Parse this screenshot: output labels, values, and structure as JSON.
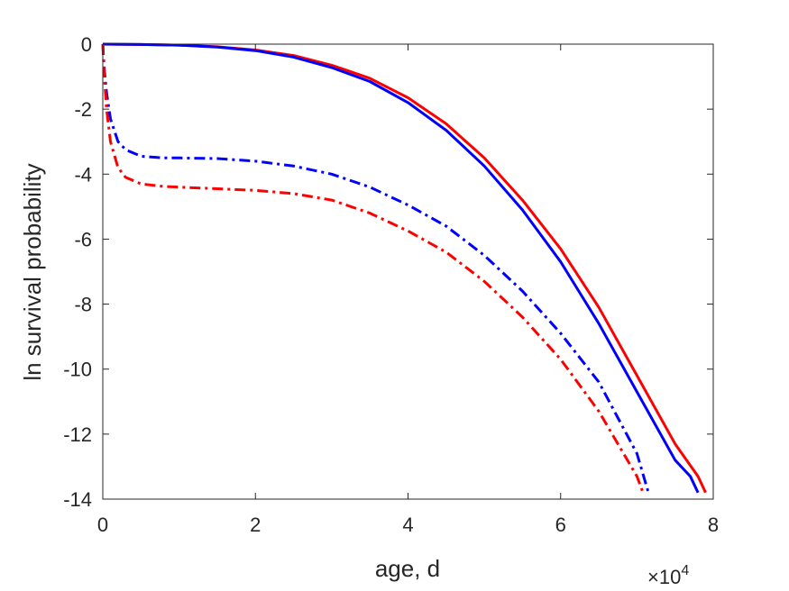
{
  "chart_data": {
    "type": "line",
    "xlabel": "age, d",
    "ylabel": "ln survival probability",
    "x_multiplier_label": "×10",
    "x_multiplier_exponent": "4",
    "xlim": [
      0,
      80000
    ],
    "ylim": [
      -14,
      0
    ],
    "x_ticks": [
      0,
      20000,
      40000,
      60000,
      80000
    ],
    "x_tick_labels": [
      "0",
      "2",
      "4",
      "6",
      "8"
    ],
    "y_ticks": [
      0,
      -2,
      -4,
      -6,
      -8,
      -10,
      -12,
      -14
    ],
    "y_tick_labels": [
      "0",
      "-2",
      "-4",
      "-6",
      "-8",
      "-10",
      "-12",
      "-14"
    ],
    "grid": false,
    "series": [
      {
        "color": "#ff0000",
        "style": "solid",
        "x": [
          0,
          5000,
          10000,
          15000,
          20000,
          25000,
          30000,
          35000,
          40000,
          45000,
          50000,
          55000,
          60000,
          65000,
          70000,
          75000,
          78000,
          79000
        ],
        "y": [
          0,
          -0.01,
          -0.03,
          -0.08,
          -0.18,
          -0.35,
          -0.65,
          -1.05,
          -1.65,
          -2.45,
          -3.5,
          -4.8,
          -6.3,
          -8.1,
          -10.2,
          -12.3,
          -13.3,
          -13.8
        ]
      },
      {
        "color": "#0000ff",
        "style": "solid",
        "x": [
          0,
          5000,
          10000,
          15000,
          20000,
          25000,
          30000,
          35000,
          40000,
          45000,
          50000,
          55000,
          60000,
          65000,
          70000,
          75000,
          77000,
          78000
        ],
        "y": [
          0,
          -0.01,
          -0.03,
          -0.09,
          -0.2,
          -0.4,
          -0.72,
          -1.15,
          -1.8,
          -2.65,
          -3.75,
          -5.1,
          -6.7,
          -8.6,
          -10.7,
          -12.8,
          -13.3,
          -13.8
        ]
      },
      {
        "color": "#0000ff",
        "style": "dashdot",
        "x": [
          0,
          200,
          500,
          1000,
          2000,
          3000,
          5000,
          8000,
          10000,
          15000,
          20000,
          25000,
          30000,
          35000,
          40000,
          45000,
          50000,
          55000,
          60000,
          65000,
          70000,
          71500
        ],
        "y": [
          0,
          -0.8,
          -1.5,
          -2.3,
          -3.0,
          -3.25,
          -3.45,
          -3.5,
          -3.5,
          -3.52,
          -3.6,
          -3.75,
          -4.0,
          -4.4,
          -4.95,
          -5.6,
          -6.5,
          -7.6,
          -8.9,
          -10.4,
          -12.6,
          -13.8
        ]
      },
      {
        "color": "#ff0000",
        "style": "dashdot",
        "x": [
          0,
          200,
          500,
          1000,
          2000,
          3000,
          5000,
          8000,
          10000,
          15000,
          20000,
          25000,
          30000,
          35000,
          40000,
          45000,
          50000,
          55000,
          60000,
          65000,
          70000,
          70800
        ],
        "y": [
          0,
          -1.0,
          -2.0,
          -3.0,
          -3.8,
          -4.1,
          -4.3,
          -4.38,
          -4.4,
          -4.45,
          -4.5,
          -4.6,
          -4.8,
          -5.2,
          -5.75,
          -6.4,
          -7.3,
          -8.4,
          -9.7,
          -11.3,
          -13.3,
          -13.8
        ]
      }
    ]
  }
}
